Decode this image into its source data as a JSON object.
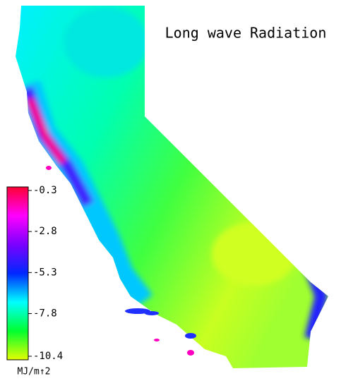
{
  "map": {
    "title": "Long wave Radiation",
    "colorbar": {
      "unit": "MJ/m↑2",
      "lim": [
        -10.4,
        -0.3
      ],
      "ticks": [
        -0.3,
        -2.8,
        -5.3,
        -7.8,
        -10.4
      ],
      "colors": [
        "#ff0033",
        "#ff00ff",
        "#7a00ff",
        "#0028ff",
        "#00ffff",
        "#00ff30",
        "#e4ff00"
      ]
    }
  }
}
